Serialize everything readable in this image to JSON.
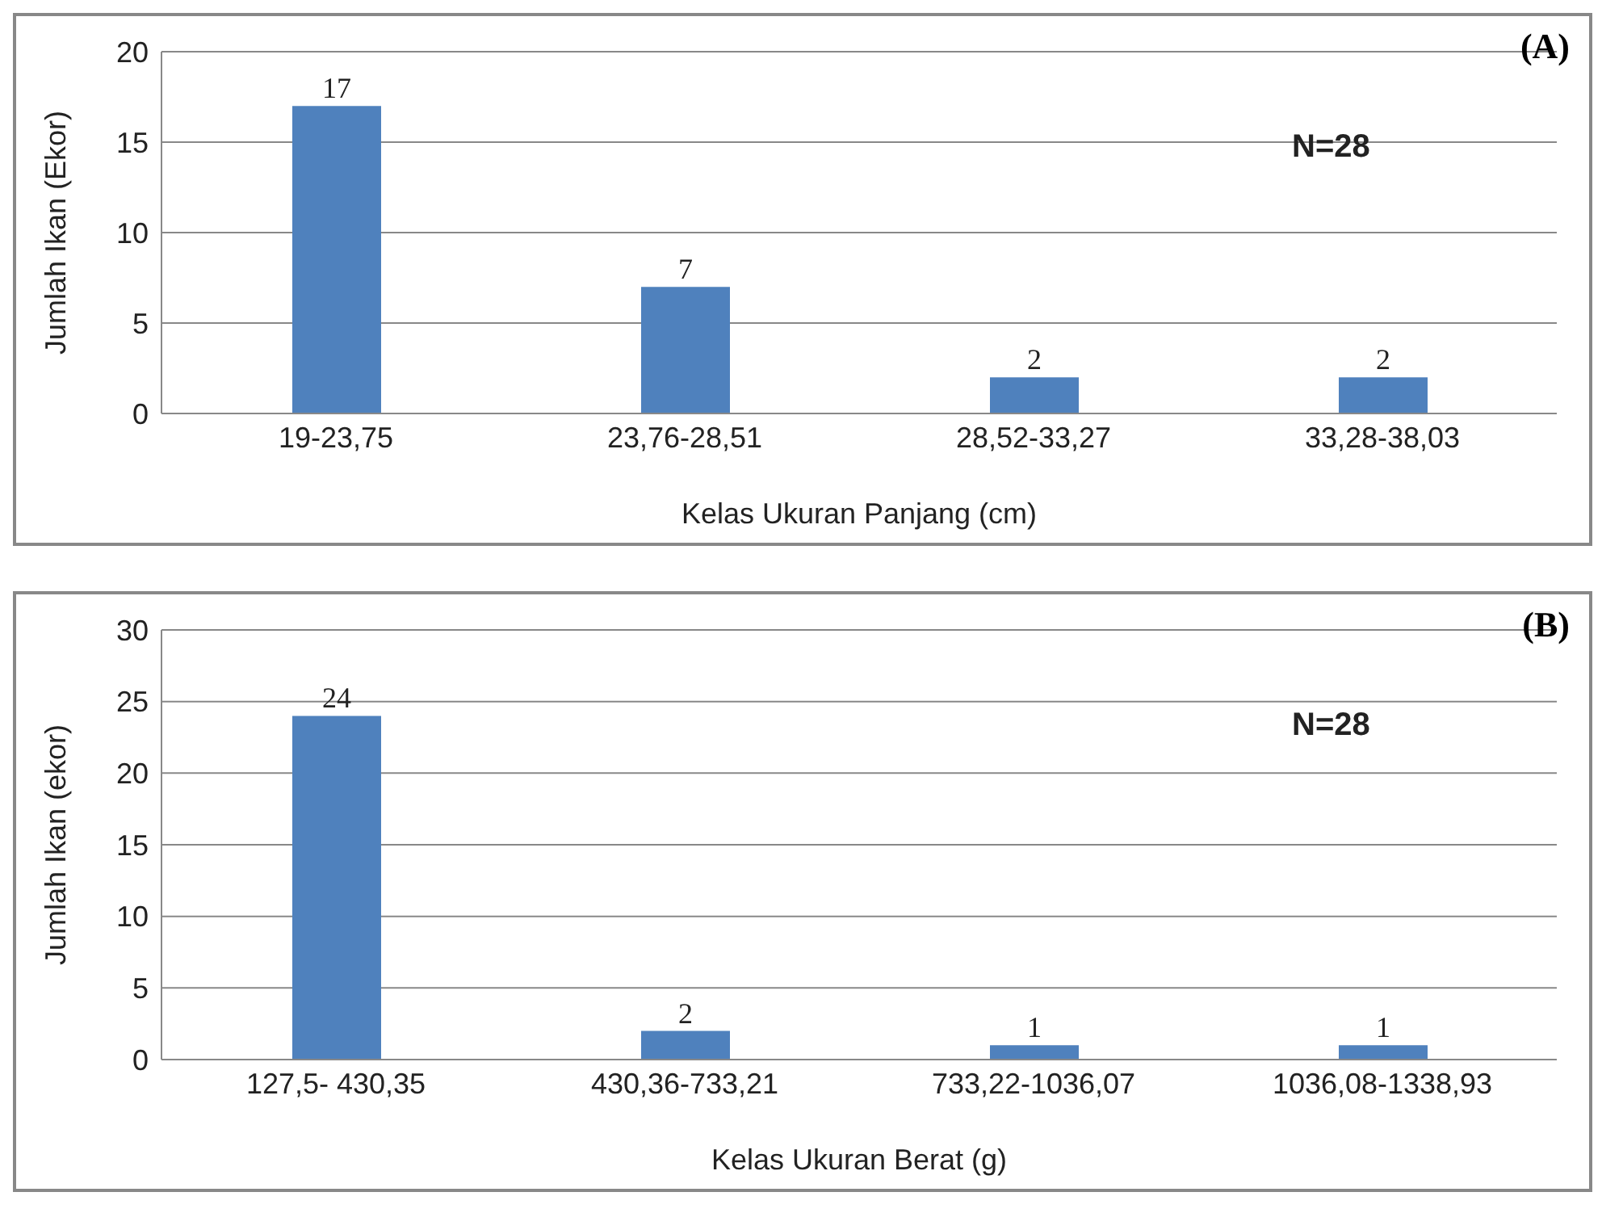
{
  "chart_data": [
    {
      "type": "bar",
      "title": "(A)",
      "categories": [
        "19-23,75",
        "23,76-28,51",
        "28,52-33,27",
        "33,28-38,03"
      ],
      "values": [
        17,
        7,
        2,
        2
      ],
      "color": "#4f81bd",
      "ylim": [
        0,
        20
      ],
      "yticks": [
        0,
        5,
        10,
        15,
        20
      ],
      "grid": "y",
      "data_labels": true,
      "xlabel": "Kelas Ukuran Panjang (cm)",
      "ylabel": "Jumlah Ikan (Ekor)",
      "annotations": [
        "N=28"
      ]
    },
    {
      "type": "bar",
      "title": "(B)",
      "categories": [
        "127,5- 430,35",
        "430,36-733,21",
        "733,22-1036,07",
        "1036,08-1338,93"
      ],
      "values": [
        24,
        2,
        1,
        1
      ],
      "color": "#4f81bd",
      "ylim": [
        0,
        30
      ],
      "yticks": [
        0,
        5,
        10,
        15,
        20,
        25,
        30
      ],
      "grid": "y",
      "data_labels": true,
      "xlabel": "Kelas Ukuran Berat (g)",
      "ylabel": "Jumlah Ikan (ekor)",
      "annotations": [
        "N=28"
      ]
    }
  ]
}
